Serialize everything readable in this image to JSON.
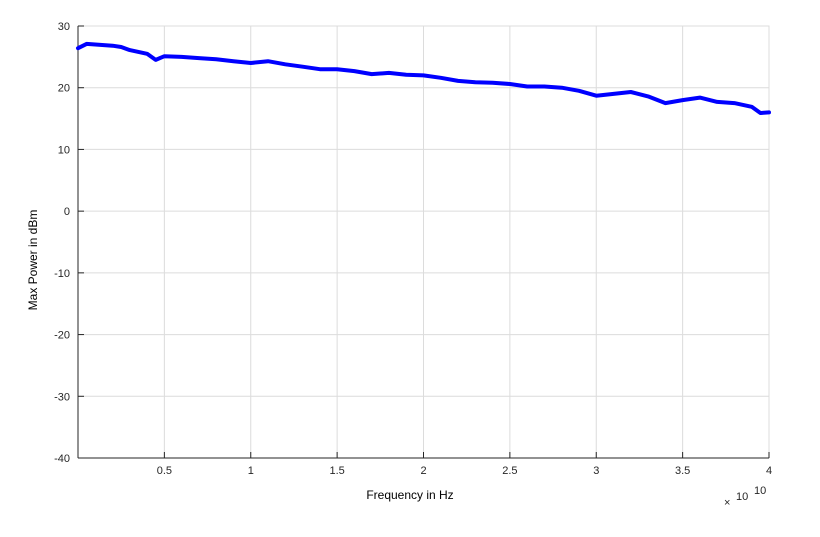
{
  "chart_data": {
    "type": "line",
    "title": "",
    "xlabel": "Frequency in Hz",
    "ylabel": "Max Power in dBm",
    "x_exponent_label": "10",
    "x_exponent": "10",
    "xlim": [
      0,
      4
    ],
    "ylim": [
      -40,
      30
    ],
    "xticks": [
      0.5,
      1,
      1.5,
      2,
      2.5,
      3,
      3.5,
      4
    ],
    "xtick_labels": [
      "0.5",
      "1",
      "1.5",
      "2",
      "2.5",
      "3",
      "3.5",
      "4"
    ],
    "yticks": [
      -40,
      -30,
      -20,
      -10,
      0,
      10,
      20,
      30
    ],
    "ytick_labels": [
      "-40",
      "-30",
      "-20",
      "-10",
      "0",
      "10",
      "20",
      "30"
    ],
    "grid": true,
    "line_color": "#0000ff",
    "series": [
      {
        "x": [
          0,
          0.05,
          0.1,
          0.2,
          0.25,
          0.3,
          0.4,
          0.45,
          0.5,
          0.6,
          0.7,
          0.8,
          0.9,
          1.0,
          1.1,
          1.2,
          1.3,
          1.4,
          1.5,
          1.6,
          1.7,
          1.8,
          1.9,
          2.0,
          2.1,
          2.2,
          2.3,
          2.4,
          2.5,
          2.6,
          2.7,
          2.8,
          2.9,
          3.0,
          3.1,
          3.2,
          3.3,
          3.4,
          3.5,
          3.6,
          3.7,
          3.8,
          3.9,
          3.95,
          4.0
        ],
        "y": [
          26.4,
          27.1,
          27.0,
          26.8,
          26.6,
          26.1,
          25.5,
          24.5,
          25.1,
          25.0,
          24.8,
          24.6,
          24.3,
          24.0,
          24.3,
          23.8,
          23.4,
          23.0,
          23.0,
          22.7,
          22.2,
          22.4,
          22.1,
          22.0,
          21.6,
          21.1,
          20.9,
          20.8,
          20.6,
          20.2,
          20.2,
          20.0,
          19.5,
          18.7,
          19.0,
          19.3,
          18.6,
          17.5,
          18.0,
          18.4,
          17.7,
          17.5,
          16.9,
          15.9,
          16.0
        ]
      }
    ]
  }
}
